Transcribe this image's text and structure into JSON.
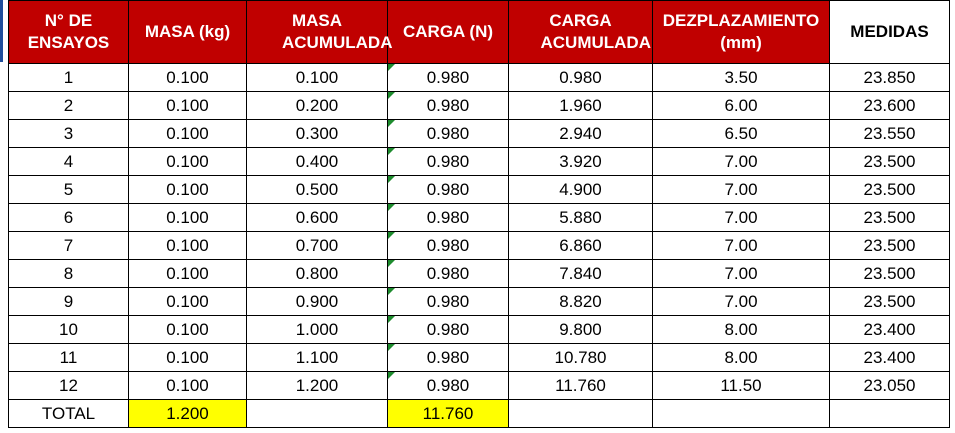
{
  "headers": [
    "N° DE ENSAYOS",
    "MASA (kg)",
    "MASA ACUMULADA",
    "CARGA (N)",
    "CARGA ACUMULADA",
    "DEZPLAZAMIENTO (mm)",
    "MEDIDAS"
  ],
  "rows": [
    [
      "1",
      "0.100",
      "0.100",
      "0.980",
      "0.980",
      "3.50",
      "23.850"
    ],
    [
      "2",
      "0.100",
      "0.200",
      "0.980",
      "1.960",
      "6.00",
      "23.600"
    ],
    [
      "3",
      "0.100",
      "0.300",
      "0.980",
      "2.940",
      "6.50",
      "23.550"
    ],
    [
      "4",
      "0.100",
      "0.400",
      "0.980",
      "3.920",
      "7.00",
      "23.500"
    ],
    [
      "5",
      "0.100",
      "0.500",
      "0.980",
      "4.900",
      "7.00",
      "23.500"
    ],
    [
      "6",
      "0.100",
      "0.600",
      "0.980",
      "5.880",
      "7.00",
      "23.500"
    ],
    [
      "7",
      "0.100",
      "0.700",
      "0.980",
      "6.860",
      "7.00",
      "23.500"
    ],
    [
      "8",
      "0.100",
      "0.800",
      "0.980",
      "7.840",
      "7.00",
      "23.500"
    ],
    [
      "9",
      "0.100",
      "0.900",
      "0.980",
      "8.820",
      "7.00",
      "23.500"
    ],
    [
      "10",
      "0.100",
      "1.000",
      "0.980",
      "9.800",
      "8.00",
      "23.400"
    ],
    [
      "11",
      "0.100",
      "1.100",
      "0.980",
      "10.780",
      "8.00",
      "23.400"
    ],
    [
      "12",
      "0.100",
      "1.200",
      "0.980",
      "11.760",
      "11.50",
      "23.050"
    ]
  ],
  "total": {
    "label": "TOTAL",
    "masa": "1.200",
    "masa_acumulada": "",
    "carga": "11.760",
    "carga_acumulada": "",
    "desplazamiento": "",
    "medidas": ""
  },
  "colors": {
    "header_red": "#c00000",
    "highlight_yellow": "#ffff00",
    "note_green": "#1e8c2e"
  }
}
